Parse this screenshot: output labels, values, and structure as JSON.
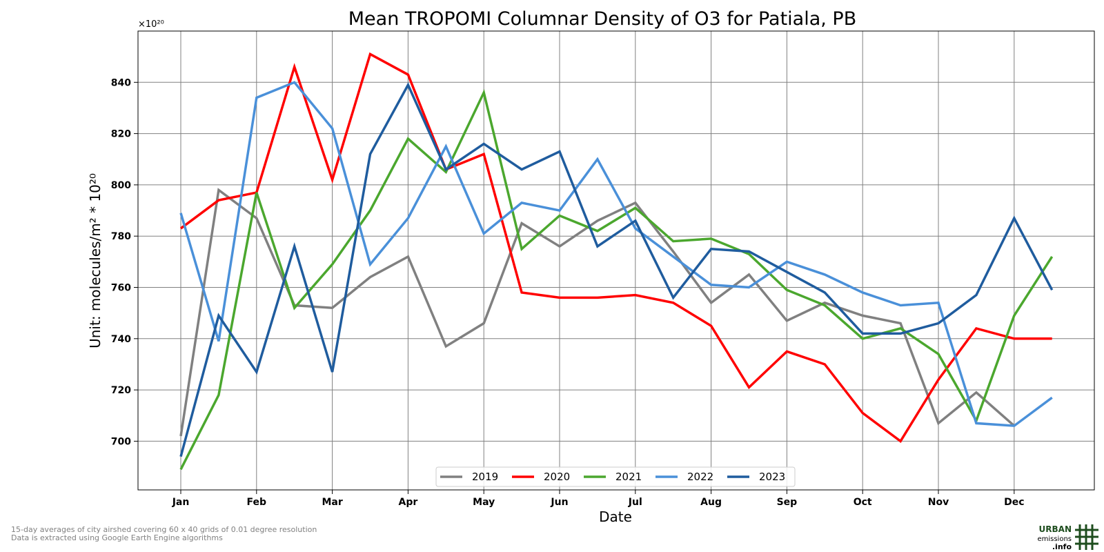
{
  "chart_data": {
    "type": "line",
    "title": "Mean TROPOMI Columnar Density of O3 for Patiala, PB",
    "xlabel": "Date",
    "ylabel": "Unit: molecules/m² * 10²⁰",
    "offset_label": "×10²⁰",
    "categories": [
      "Jan",
      "",
      "Feb",
      "",
      "Mar",
      "",
      "Apr",
      "",
      "May",
      "",
      "Jun",
      "",
      "Jul",
      "",
      "Aug",
      "",
      "Sep",
      "",
      "Oct",
      "",
      "Nov",
      "",
      "Dec",
      ""
    ],
    "x_tick_labels": [
      "Jan",
      "Feb",
      "Mar",
      "Apr",
      "May",
      "Jun",
      "Jul",
      "Aug",
      "Sep",
      "Oct",
      "Nov",
      "Dec"
    ],
    "y_ticks": [
      700,
      720,
      740,
      760,
      780,
      800,
      820,
      840
    ],
    "ylim": [
      681,
      860
    ],
    "grid": true,
    "legend_position": "bottom-center",
    "series": [
      {
        "name": "2019",
        "color": "#808080",
        "values": [
          702,
          798,
          787,
          753,
          752,
          764,
          772,
          737,
          746,
          785,
          776,
          786,
          793,
          774,
          754,
          765,
          747,
          754,
          749,
          746,
          707,
          719,
          706,
          null
        ]
      },
      {
        "name": "2020",
        "color": "#ff0000",
        "values": [
          783,
          794,
          797,
          846,
          802,
          851,
          843,
          806,
          812,
          758,
          756,
          756,
          757,
          754,
          745,
          721,
          735,
          730,
          711,
          700,
          724,
          744,
          740,
          740
        ]
      },
      {
        "name": "2021",
        "color": "#4ba72e",
        "values": [
          689,
          718,
          797,
          752,
          769,
          790,
          818,
          805,
          836,
          775,
          788,
          782,
          791,
          778,
          779,
          773,
          759,
          753,
          740,
          744,
          734,
          708,
          749,
          772
        ]
      },
      {
        "name": "2022",
        "color": "#4a90d9",
        "values": [
          789,
          739,
          834,
          840,
          822,
          769,
          787,
          815,
          781,
          793,
          790,
          810,
          783,
          772,
          761,
          760,
          770,
          765,
          758,
          753,
          754,
          707,
          706,
          717
        ]
      },
      {
        "name": "2023",
        "color": "#1f5c9e",
        "values": [
          694,
          749,
          727,
          776,
          727,
          812,
          839,
          806,
          816,
          806,
          813,
          776,
          786,
          756,
          775,
          774,
          766,
          758,
          742,
          742,
          746,
          757,
          787,
          759
        ]
      }
    ]
  },
  "footnote": {
    "line1": "15-day averages of city airshed covering 60 x 40 grids of 0.01 degree resolution",
    "line2": "Data is extracted using Google Earth Engine algorithms"
  },
  "logo": {
    "line1": "URBAN",
    "line2": "emissions",
    "line3": ".info",
    "color": "#1e4d1e"
  }
}
